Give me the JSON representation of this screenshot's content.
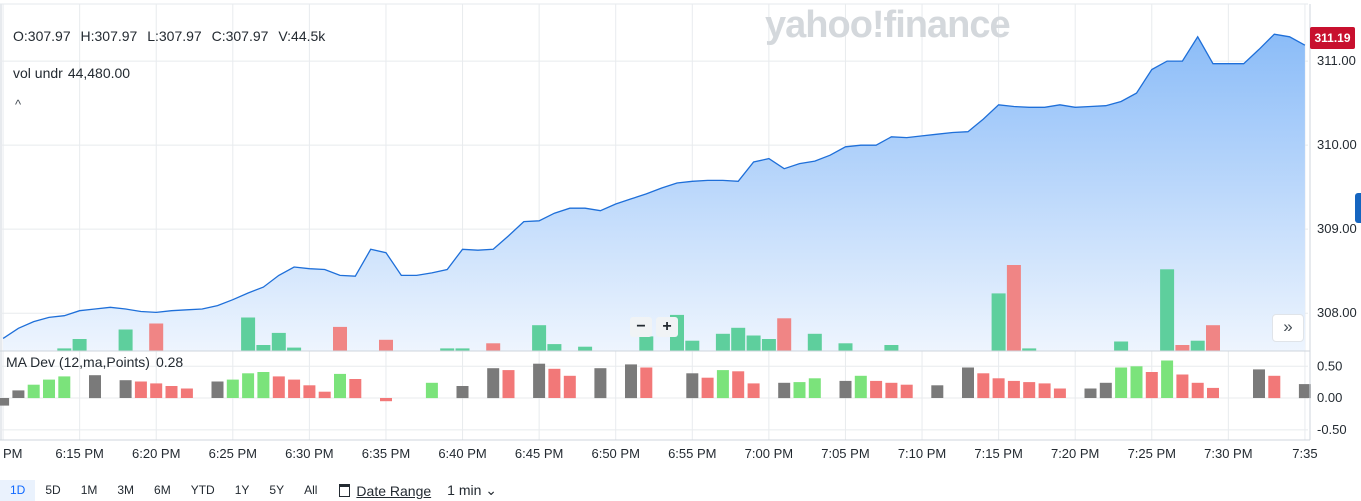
{
  "header": {
    "open": "O:307.97",
    "high": "H:307.97",
    "low": "L:307.97",
    "close": "C:307.97",
    "volume": "V:44.5k",
    "vol_label": "vol undr",
    "vol_value": "44,480.00",
    "collapse_icon": "^"
  },
  "watermark": "yahoo!finance",
  "last_price_tag": "311.19",
  "zoom": {
    "minus": "−",
    "plus": "+"
  },
  "expand_icon": "»",
  "indicator": {
    "label": "MA Dev (12,ma,Points)",
    "value": "0.28"
  },
  "range_buttons": [
    "1D",
    "5D",
    "1M",
    "3M",
    "6M",
    "YTD",
    "1Y",
    "5Y",
    "All"
  ],
  "active_range": "1D",
  "date_range_label": "Date Range",
  "interval_label": "1 min ⌄",
  "colors": {
    "line": "#1e6fd9",
    "area_top": "#8bbcf8",
    "area_bottom": "#eef5fe",
    "up": "#5ecf9d",
    "down": "#f08585",
    "ma_up": "#7be37b",
    "ma_down": "#f27878",
    "ma_neutral": "#7a7a7a",
    "price_tag": "#c8102e"
  },
  "chart_data": [
    {
      "type": "area",
      "title": "",
      "x_ticks": [
        "PM",
        "6:15 PM",
        "6:20 PM",
        "6:25 PM",
        "6:30 PM",
        "6:35 PM",
        "6:40 PM",
        "6:45 PM",
        "6:50 PM",
        "6:55 PM",
        "7:00 PM",
        "7:05 PM",
        "7:10 PM",
        "7:15 PM",
        "7:20 PM",
        "7:25 PM",
        "7:30 PM",
        "7:35"
      ],
      "y_ticks": [
        "308.00",
        "309.00",
        "310.00",
        "311.00"
      ],
      "ylim": [
        307.55,
        311.68
      ],
      "xlim_minutes": [
        -5.2,
        80.2
      ],
      "x_minutes": [
        -5,
        -4,
        -3,
        -2,
        -1,
        0,
        1,
        2,
        3,
        4,
        5,
        6,
        7,
        8,
        9,
        10,
        11,
        12,
        13,
        14,
        15,
        16,
        17,
        18,
        19,
        20,
        21,
        22,
        23,
        24,
        25,
        26,
        27,
        28,
        29,
        30,
        31,
        32,
        33,
        34,
        35,
        36,
        37,
        38,
        39,
        40,
        41,
        42,
        43,
        44,
        45,
        46,
        47,
        48,
        49,
        50,
        51,
        52,
        53,
        54,
        55,
        56,
        57,
        58,
        59,
        60,
        61,
        62,
        63,
        64,
        65,
        66,
        67,
        68,
        69,
        70,
        71,
        72,
        73,
        74,
        75,
        76,
        77,
        78,
        79,
        80
      ],
      "close": [
        307.7,
        307.82,
        307.9,
        307.95,
        307.97,
        308.03,
        308.05,
        308.07,
        308.05,
        308.02,
        308.01,
        308.03,
        308.04,
        308.05,
        308.09,
        308.16,
        308.24,
        308.31,
        308.45,
        308.55,
        308.53,
        308.52,
        308.45,
        308.44,
        308.76,
        308.72,
        308.45,
        308.45,
        308.48,
        308.52,
        308.76,
        308.75,
        308.76,
        308.92,
        309.09,
        309.1,
        309.19,
        309.25,
        309.25,
        309.22,
        309.3,
        309.36,
        309.42,
        309.49,
        309.55,
        309.57,
        309.58,
        309.58,
        309.57,
        309.8,
        309.84,
        309.72,
        309.78,
        309.81,
        309.88,
        309.98,
        310.0,
        310.0,
        310.1,
        310.09,
        310.11,
        310.13,
        310.15,
        310.16,
        310.31,
        310.48,
        310.46,
        310.45,
        310.45,
        310.48,
        310.45,
        310.46,
        310.47,
        310.52,
        310.62,
        310.9,
        311.0,
        311.0,
        311.29,
        310.97,
        310.97,
        310.97,
        311.14,
        311.32,
        311.29,
        311.19
      ],
      "volume_bar_colors": [
        "none",
        "none",
        "none",
        "none",
        "up",
        "up",
        "none",
        "none",
        "up",
        "none",
        "down",
        "none",
        "none",
        "none",
        "none",
        "none",
        "up",
        "up",
        "up",
        "up",
        "none",
        "none",
        "down",
        "none",
        "none",
        "down",
        "none",
        "none",
        "none",
        "up",
        "up",
        "none",
        "down",
        "none",
        "none",
        "up",
        "up",
        "none",
        "up",
        "none",
        "none",
        "none",
        "up",
        "none",
        "up",
        "up",
        "none",
        "up",
        "up",
        "up",
        "up",
        "down",
        "none",
        "up",
        "none",
        "up",
        "none",
        "none",
        "up",
        "none",
        "none",
        "none",
        "none",
        "none",
        "none",
        "up",
        "down",
        "up",
        "none",
        "none",
        "none",
        "none",
        "none",
        "up",
        "none",
        "none",
        "up",
        "down",
        "up",
        "down",
        "none",
        "none",
        "none",
        "none",
        "none",
        "none"
      ],
      "volume_relative": [
        0,
        0,
        0,
        0,
        0.03,
        0.14,
        0,
        0,
        0.25,
        0,
        0.32,
        0,
        0,
        0,
        0,
        0,
        0.39,
        0.07,
        0.21,
        0.04,
        0,
        0,
        0.28,
        0,
        0,
        0.13,
        0,
        0,
        0,
        0.03,
        0.03,
        0,
        0.09,
        0,
        0,
        0.3,
        0.08,
        0,
        0.05,
        0,
        0,
        0,
        0.17,
        0,
        0.42,
        0.12,
        0,
        0.2,
        0.27,
        0.18,
        0.14,
        0.38,
        0,
        0.2,
        0,
        0.09,
        0,
        0,
        0.07,
        0,
        0,
        0,
        0,
        0,
        0,
        0.67,
        1.0,
        0.03,
        0,
        0,
        0,
        0,
        0,
        0.11,
        0,
        0,
        0.95,
        0.07,
        0.12,
        0.3,
        0,
        0,
        0,
        0,
        0,
        0
      ]
    },
    {
      "type": "bar",
      "title": "MA Dev (12,ma,Points)",
      "y_ticks": [
        "0.50",
        "0.00",
        "-0.50"
      ],
      "ylim": [
        -0.66,
        0.74
      ],
      "x_minutes": [
        -5,
        -4,
        -3,
        -2,
        -1,
        0,
        1,
        2,
        3,
        4,
        5,
        6,
        7,
        8,
        9,
        10,
        11,
        12,
        13,
        14,
        15,
        16,
        17,
        18,
        19,
        20,
        21,
        22,
        23,
        24,
        25,
        26,
        27,
        28,
        29,
        30,
        31,
        32,
        33,
        34,
        35,
        36,
        37,
        38,
        39,
        40,
        41,
        42,
        43,
        44,
        45,
        46,
        47,
        48,
        49,
        50,
        51,
        52,
        53,
        54,
        55,
        56,
        57,
        58,
        59,
        60,
        61,
        62,
        63,
        64,
        65,
        66,
        67,
        68,
        69,
        70,
        71,
        72,
        73,
        74,
        75,
        76,
        77,
        78,
        79,
        80
      ],
      "values": [
        -0.12,
        0.12,
        0.21,
        0.29,
        0.34,
        0.0,
        0.36,
        0.0,
        0.28,
        0.26,
        0.23,
        0.19,
        0.15,
        0.0,
        0.26,
        0.29,
        0.39,
        0.41,
        0.34,
        0.29,
        0.2,
        0.1,
        0.38,
        0.3,
        0.0,
        -0.05,
        0.0,
        0.0,
        0.24,
        0.0,
        0.19,
        0.0,
        0.47,
        0.44,
        0.0,
        0.54,
        0.46,
        0.35,
        0.0,
        0.47,
        0.0,
        0.53,
        0.48,
        0.0,
        0.0,
        0.39,
        0.32,
        0.44,
        0.42,
        0.23,
        0.0,
        0.24,
        0.25,
        0.31,
        0.0,
        0.27,
        0.35,
        0.27,
        0.24,
        0.21,
        0.0,
        0.2,
        0.0,
        0.48,
        0.39,
        0.31,
        0.27,
        0.25,
        0.23,
        0.15,
        0.0,
        0.15,
        0.24,
        0.48,
        0.5,
        0.41,
        0.59,
        0.37,
        0.24,
        0.16,
        0.0,
        0.0,
        0.45,
        0.35,
        0.0,
        0.22
      ],
      "bar_colors": [
        "neutral",
        "neutral",
        "up",
        "up",
        "up",
        "none",
        "neutral",
        "none",
        "neutral",
        "down",
        "down",
        "down",
        "down",
        "none",
        "neutral",
        "up",
        "up",
        "up",
        "down",
        "down",
        "down",
        "down",
        "up",
        "down",
        "none",
        "down",
        "none",
        "none",
        "up",
        "none",
        "neutral",
        "none",
        "neutral",
        "down",
        "none",
        "neutral",
        "down",
        "down",
        "none",
        "neutral",
        "none",
        "neutral",
        "down",
        "none",
        "none",
        "neutral",
        "down",
        "up",
        "down",
        "down",
        "none",
        "neutral",
        "up",
        "up",
        "none",
        "neutral",
        "up",
        "down",
        "down",
        "down",
        "none",
        "neutral",
        "none",
        "neutral",
        "down",
        "down",
        "down",
        "down",
        "down",
        "down",
        "none",
        "neutral",
        "neutral",
        "up",
        "up",
        "down",
        "up",
        "down",
        "down",
        "down",
        "none",
        "none",
        "neutral",
        "down",
        "none",
        "neutral"
      ]
    }
  ]
}
